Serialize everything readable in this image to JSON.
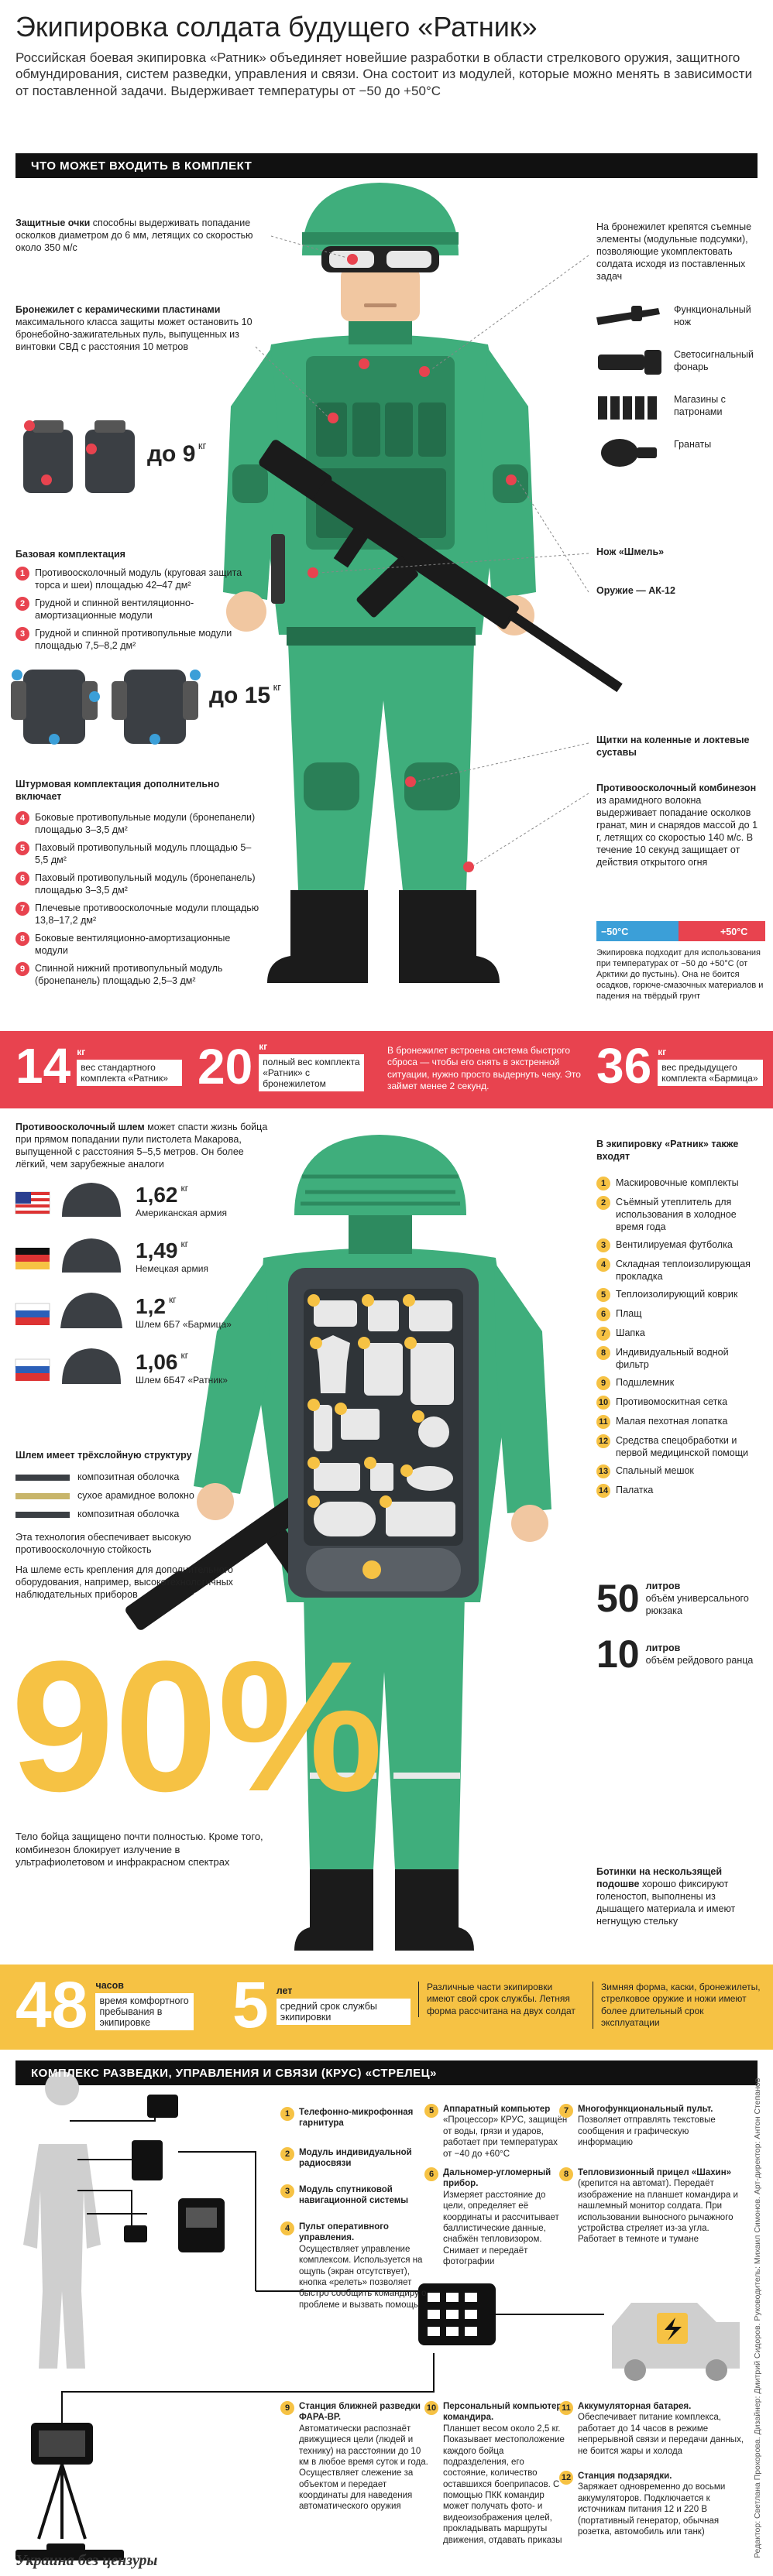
{
  "header": {
    "title": "Экипировка солдата будущего «Ратник»",
    "intro": "Российская боевая экипировка «Ратник» объединяет новейшие разработки в области стрелкового оружия, защитного обмундирования, систем разведки, управления и связи. Она состоит из модулей, которые можно менять в зависимости от поставленной задачи. Выдерживает температуры от −50 до +50°С"
  },
  "kit": {
    "heading": "ЧТО МОЖЕТ ВХОДИТЬ В КОМПЛЕКТ",
    "goggles": {
      "lead": "Защитные очки",
      "text": "способны выдерживать попадание осколков диаметром до 6 мм, летящих со скоростью около 350 м/с"
    },
    "vest": {
      "lead": "Бронежилет с керамическими пластинами",
      "text": "максимального класса защиты может остановить 10 бронебойно-зажигательных пуль, выпущенных из винтовки СВД с расстояния 10 метров"
    },
    "vest_weight_1": "до 9",
    "vest_weight_2": "до 15",
    "weight_unit": "кг",
    "basic": {
      "title": "Базовая комплектация",
      "items": [
        {
          "n": "1",
          "text": "Противоосколочный модуль (круговая защита торса и шеи) площадью 42–47 дм²"
        },
        {
          "n": "2",
          "text": "Грудной и спинной вентиляционно-амортизационные модули"
        },
        {
          "n": "3",
          "text": "Грудной и спинной противопульные модули площадью 7,5–8,2 дм²"
        }
      ]
    },
    "assault": {
      "title": "Штурмовая комплектация дополнительно включает",
      "items": [
        {
          "n": "4",
          "text": "Боковые противопульные модули (бронепанели) площадью 3–3,5 дм²"
        },
        {
          "n": "5",
          "text": "Паховый противопульный модуль площадью 5–5,5 дм²"
        },
        {
          "n": "6",
          "text": "Паховый противопульный модуль (бронепанель) площадью 3–3,5 дм²"
        },
        {
          "n": "7",
          "text": "Плечевые противоосколочные модули площадью 13,8–17,2 дм²"
        },
        {
          "n": "8",
          "text": "Боковые вентиляционно-амортизационные модули"
        },
        {
          "n": "9",
          "text": "Спинной нижний противопульный модуль (бронепанель) площадью 2,5–3 дм²"
        }
      ]
    },
    "pouches": {
      "text": "На бронежилет крепятся съемные элементы (модульные подсумки), позволяющие укомплектовать солдата исходя из поставленных задач",
      "items": [
        "Функциональный нож",
        "Светосигнальный фонарь",
        "Магазины с патронами",
        "Гранаты"
      ]
    },
    "knife": "Нож «Шмель»",
    "weapon": "Оружие — АК-12",
    "pads": "Щитки на коленные и локтевые суставы",
    "suit": {
      "lead": "Противоосколочный комбинезон",
      "text": "из арамидного волокна выдерживает попадание осколков гранат, мин и снарядов массой до 1 г, летящих со скоростью 140 м/с. В течение 10 секунд защищает от действия открытого огня"
    },
    "temp_cold": "−50°С",
    "temp_hot": "+50°С",
    "temp_note": "Экипировка подходит для использования при температурах от −50 до +50°С (от Арктики до пустынь). Она не боится осадков, горюче-смазочных материалов и падения на твёрдый грунт"
  },
  "stats": {
    "items": [
      {
        "number": "14",
        "unit": "кг",
        "text": "вес стандартного комплекта «Ратник»"
      },
      {
        "number": "20",
        "unit": "кг",
        "text": "полный вес комплекта «Ратник» с бронежилетом"
      },
      {
        "number": "36",
        "unit": "кг",
        "text": "вес предыдущего комплекта «Бармица»"
      }
    ],
    "note": "В бронежилет встроена система быстрого сброса — чтобы его снять в экстренной ситуации, нужно просто выдернуть чеку. Это займет менее 2 секунд."
  },
  "extras": {
    "helmet": {
      "lead": "Противоосколочный шлем",
      "text": "может спасти жизнь бойца при прямом попадании пули пистолета Макарова, выпущенной с расстояния 5–5,5 метров. Он более лёгкий, чем зарубежные аналоги"
    },
    "helmets": [
      {
        "weight": "1,62",
        "unit": "кг",
        "label": "Американская армия"
      },
      {
        "weight": "1,49",
        "unit": "кг",
        "label": "Немецкая армия"
      },
      {
        "weight": "1,2",
        "unit": "кг",
        "label": "Шлем 6Б7 «Бармица»"
      },
      {
        "weight": "1,06",
        "unit": "кг",
        "label": "Шлем 6Б47 «Ратник»"
      }
    ],
    "structure": {
      "title": "Шлем имеет трёхслойную структуру",
      "layers": [
        "композитная оболочка",
        "сухое арамидное волокно",
        "композитная оболочка"
      ]
    },
    "structure_note": "Эта технология обеспечивает высокую противоосколочную стойкость",
    "mount_note": "На шлеме есть крепления для дополнительного оборудования, например, высокотехнологичных наблюдательных приборов",
    "percent": "90%",
    "percent_text": "Тело бойца защищено почти полностью. Кроме того, комбинезон блокирует излучение в ультрафиолетовом и инфракрасном спектрах",
    "list_title": "В экипировку «Ратник» также входят",
    "list": [
      {
        "n": "1",
        "text": "Маскировочные комплекты"
      },
      {
        "n": "2",
        "text": "Съёмный утеплитель для использования в холодное время года"
      },
      {
        "n": "3",
        "text": "Вентилируемая футболка"
      },
      {
        "n": "4",
        "text": "Складная теплоизолирующая прокладка"
      },
      {
        "n": "5",
        "text": "Теплоизолирующий коврик"
      },
      {
        "n": "6",
        "text": "Плащ"
      },
      {
        "n": "7",
        "text": "Шапка"
      },
      {
        "n": "8",
        "text": "Индивидуальный водной фильтр"
      },
      {
        "n": "9",
        "text": "Подшлемник"
      },
      {
        "n": "10",
        "text": "Противомоскитная сетка"
      },
      {
        "n": "11",
        "text": "Малая пехотная лопатка"
      },
      {
        "n": "12",
        "text": "Средства спецобработки и первой медицинской помощи"
      },
      {
        "n": "13",
        "text": "Спальный мешок"
      },
      {
        "n": "14",
        "text": "Палатка"
      }
    ],
    "volumes": [
      {
        "number": "50",
        "unit": "литров",
        "text": "объём универсального рюкзака"
      },
      {
        "number": "10",
        "unit": "литров",
        "text": "объём рейдового ранца"
      }
    ],
    "boots": {
      "lead": "Ботинки на нескользящей подошве",
      "text": "хорошо фиксируют голеностоп, выполнены из дышащего материала и имеют негнущую стельку"
    }
  },
  "durability": {
    "items": [
      {
        "number": "48",
        "unit": "часов",
        "text": "время комфортного пребывания в экипировке"
      },
      {
        "number": "5",
        "unit": "лет",
        "text": "средний срок службы экипировки"
      }
    ],
    "notes": [
      "Различные части экипировки имеют свой срок службы. Летняя форма рассчитана на двух солдат",
      "Зимняя форма, каски, бронежилеты, стрелковое оружие и ножи имеют более длительный срок эксплуатации"
    ]
  },
  "krus": {
    "heading": "КОМПЛЕКС РАЗВЕДКИ, УПРАВЛЕНИЯ И СВЯЗИ (КРУС) «СТРЕЛЕЦ»",
    "items": [
      {
        "n": "1",
        "title": "Телефонно-микрофонная гарнитура",
        "text": ""
      },
      {
        "n": "2",
        "title": "Модуль индивидуальной радиосвязи",
        "text": ""
      },
      {
        "n": "3",
        "title": "Модуль спутниковой навигационной системы",
        "text": ""
      },
      {
        "n": "4",
        "title": "Пульт оперативного управления.",
        "text": "Осуществляет управление комплексом. Используется на ощупь (экран отсутствует), кнопка «релеть» позволяет быстро сообщить командиру о проблеме и вызвать помощь"
      },
      {
        "n": "5",
        "title": "Аппаратный компьютер",
        "text": "«Процессор» КРУС, защищён от воды, грязи и ударов, работает при температурах от −40 до +60°С"
      },
      {
        "n": "6",
        "title": "Дальномер-угломерный прибор.",
        "text": "Измеряет расстояние до цели, определяет её координаты и рассчитывает баллистические данные, снабжён тепловизором. Снимает и передаёт фотографии"
      },
      {
        "n": "7",
        "title": "Многофункциональный пульт.",
        "text": "Позволяет отправлять текстовые сообщения и графическую информацию"
      },
      {
        "n": "8",
        "title": "Тепловизионный прицел «Шахин»",
        "text": "(крепится на автомат). Передаёт изображение на планшет командира и нашлемный монитор солдата. При использовании выносного рычажного устройства стреляет из-за угла. Работает в темноте и тумане"
      },
      {
        "n": "9",
        "title": "Станция ближней разведки ФАРА-ВР.",
        "text": "Автоматически распознаёт движущиеся цели (людей и технику) на расстоянии до 10 км в любое время суток и года. Осуществляет слежение за объектом и передает координаты для наведения автоматического оружия"
      },
      {
        "n": "10",
        "title": "Персональный компьютер командира.",
        "text": "Планшет весом около 2,5 кг. Показывает местоположение каждого бойца подразделения, его состояние, количество оставшихся боеприпасов. С помощью ПКК командир может получать фото- и видеоизображения целей, прокладывать маршруты движения, отдавать приказы"
      },
      {
        "n": "11",
        "title": "Аккумуляторная батарея.",
        "text": "Обеспечивает питание комплекса, работает до 14 часов в режиме непрерывной связи и передачи данных, не боится жары и холода"
      },
      {
        "n": "12",
        "title": "Станция подзарядки.",
        "text": "Заряжает одновременно до восьми аккумуляторов. Подключается к источникам питания 12 и 220 В (портативный генератор, обычная розетка, автомобиль или танк)"
      }
    ]
  },
  "credits": "Редактор: Светлана Прохорова. Дизайнер: Дмитрий Сидоров. Руководитель: Михаил Симонов. Арт-директор: Антон Степанов",
  "footer": "Украина без цензуры"
}
